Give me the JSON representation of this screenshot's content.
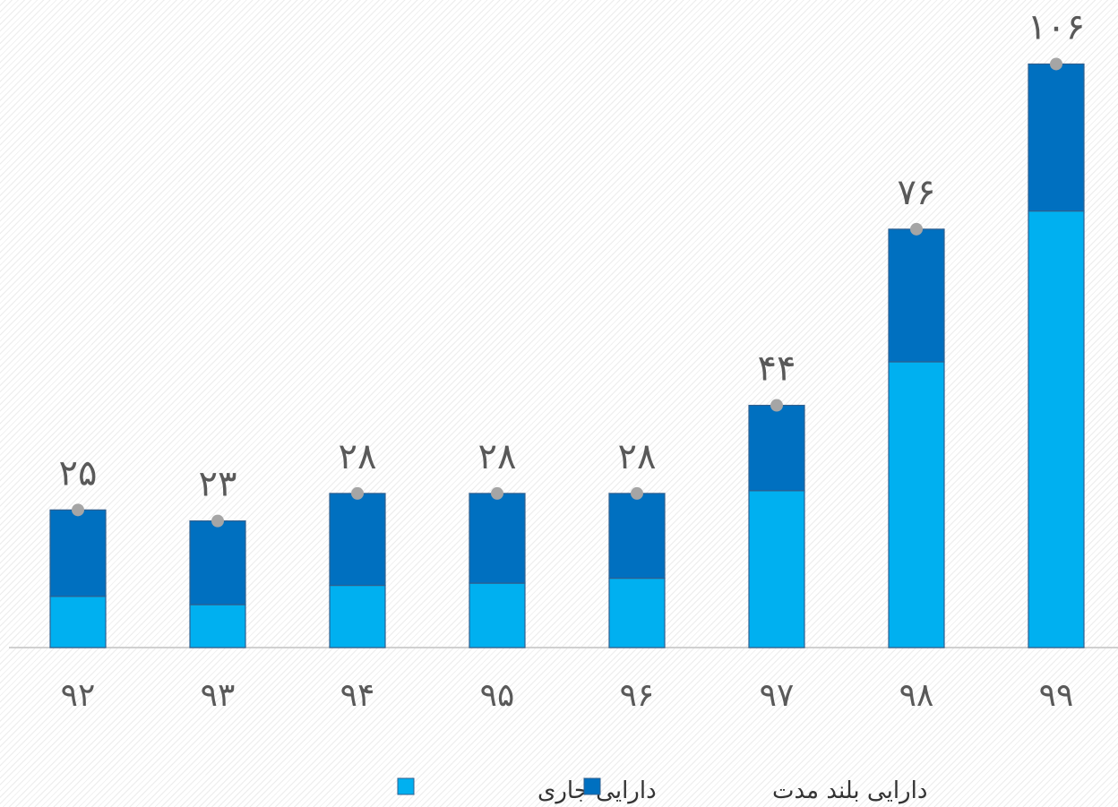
{
  "chart_data": {
    "type": "bar",
    "stacked": true,
    "categories": [
      "۹۲",
      "۹۳",
      "۹۴",
      "۹۵",
      "۹۶",
      "۹۷",
      "۹۸",
      "۹۹"
    ],
    "series": [
      {
        "name": "دارایی جاری",
        "color": "#00b0f0",
        "values": [
          9.3,
          7.8,
          11.3,
          11.7,
          12.6,
          28.5,
          51.9,
          79.3
        ]
      },
      {
        "name": "دارایی بلند مدت",
        "color": "#0070c0",
        "values": [
          15.7,
          15.2,
          16.7,
          16.3,
          15.4,
          15.5,
          24.1,
          26.7
        ]
      }
    ],
    "totals": {
      "color": "#a5a5a5",
      "values": [
        25,
        23,
        28,
        28,
        28,
        44,
        76,
        106
      ],
      "value_labels": [
        "۲۵",
        "۲۳",
        "۲۸",
        "۲۸",
        "۲۸",
        "۴۴",
        "۷۶",
        "۱۰۶"
      ]
    },
    "ylim": [
      0,
      116
    ]
  }
}
